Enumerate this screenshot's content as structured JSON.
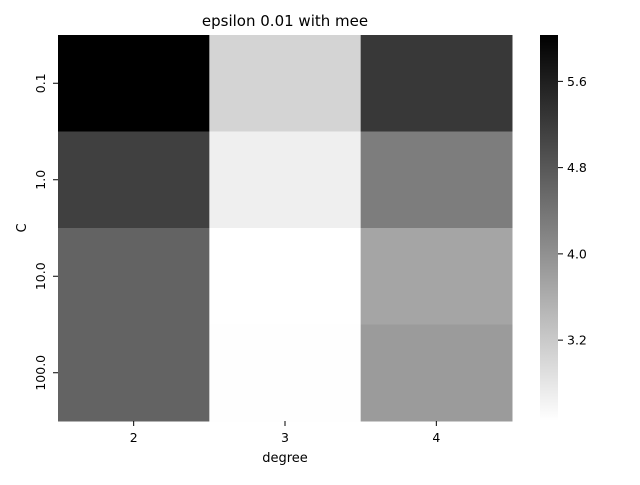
{
  "chart_data": {
    "type": "heatmap",
    "title": "epsilon 0.01 with mee",
    "xlabel": "degree",
    "ylabel": "C",
    "x_categories": [
      "2",
      "3",
      "4"
    ],
    "y_categories": [
      "0.1",
      "1.0",
      "10.0",
      "100.0"
    ],
    "values": [
      [
        6.03,
        3.05,
        5.25
      ],
      [
        5.13,
        2.67,
        4.27
      ],
      [
        4.64,
        2.45,
        3.72
      ],
      [
        4.64,
        2.47,
        3.86
      ]
    ],
    "colormap": "Greys",
    "colorbar": {
      "range": [
        2.45,
        6.03
      ],
      "ticks": [
        3.2,
        4.0,
        4.8,
        5.6
      ],
      "tick_labels": [
        "3.2",
        "4.0",
        "4.8",
        "5.6"
      ]
    }
  }
}
